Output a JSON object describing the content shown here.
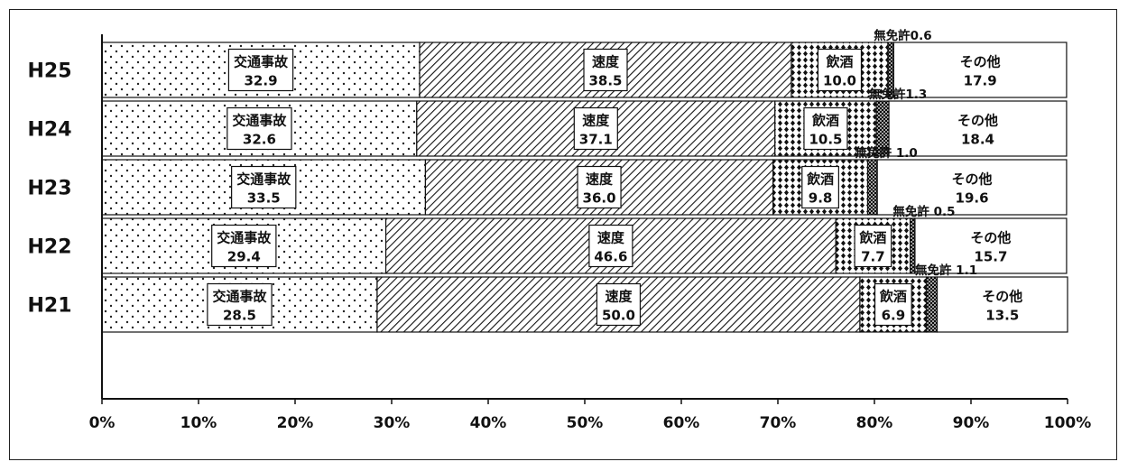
{
  "chart_data": {
    "type": "bar",
    "orientation": "horizontal",
    "stacked": true,
    "normalized": true,
    "categories": [
      "H25",
      "H24",
      "H23",
      "H22",
      "H21"
    ],
    "series": [
      {
        "name": "交通事故",
        "values": [
          32.9,
          32.6,
          33.5,
          29.4,
          28.5
        ],
        "pattern": "dots",
        "labels": [
          "32.9",
          "32.6",
          "33.5",
          "29.4",
          "28.5"
        ]
      },
      {
        "name": "速度",
        "values": [
          38.5,
          37.1,
          36.0,
          46.6,
          50.0
        ],
        "pattern": "hatch",
        "labels": [
          "38.5",
          "37.1",
          "36.0",
          "46.6",
          "50.0"
        ]
      },
      {
        "name": "飲酒",
        "values": [
          10.0,
          10.5,
          9.8,
          7.7,
          6.9
        ],
        "pattern": "diamonds",
        "labels": [
          "10.0",
          "10.5",
          "9.8",
          "7.7",
          "6.9"
        ]
      },
      {
        "name": "無免許",
        "values": [
          0.6,
          1.3,
          1.0,
          0.5,
          1.1
        ],
        "pattern": "crosshatch",
        "labels": [
          "無免許0.6",
          "無免許1.3",
          "無免許 1.0",
          "無免許 0.5",
          "無免許 1.1"
        ]
      },
      {
        "name": "その他",
        "values": [
          17.9,
          18.4,
          19.6,
          15.7,
          13.5
        ],
        "pattern": "white",
        "labels": [
          "17.9",
          "18.4",
          "19.6",
          "15.7",
          "13.5"
        ]
      }
    ],
    "xlim": [
      0,
      100
    ],
    "xticks": [
      "0%",
      "10%",
      "20%",
      "30%",
      "40%",
      "50%",
      "60%",
      "70%",
      "80%",
      "90%",
      "100%"
    ],
    "grid": false,
    "legend": "none"
  }
}
